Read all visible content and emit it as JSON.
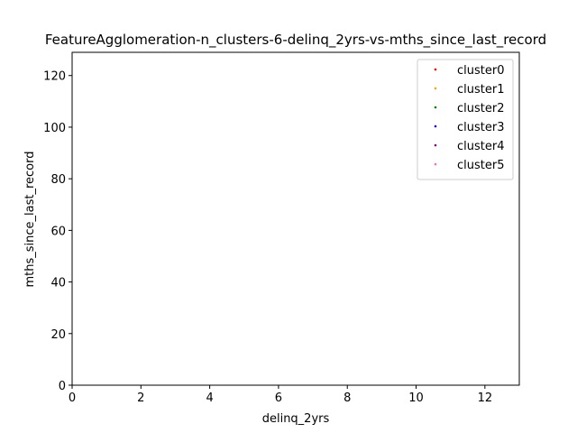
{
  "chart_data": {
    "type": "scatter",
    "title": "FeatureAgglomeration-n_clusters-6-delinq_2yrs-vs-mths_since_last_record",
    "xlabel": "delinq_2yrs",
    "ylabel": "mths_since_last_record",
    "xlim": [
      0,
      13
    ],
    "ylim": [
      0,
      129
    ],
    "xticks": [
      0,
      2,
      4,
      6,
      8,
      10,
      12
    ],
    "yticks": [
      0,
      20,
      40,
      60,
      80,
      100,
      120
    ],
    "grid": false,
    "legend_position": "top-right",
    "series": [
      {
        "name": "cluster0",
        "color": "#ff0000",
        "points": []
      },
      {
        "name": "cluster1",
        "color": "#ffa500",
        "points": []
      },
      {
        "name": "cluster2",
        "color": "#008000",
        "points": []
      },
      {
        "name": "cluster3",
        "color": "#0000ff",
        "points": []
      },
      {
        "name": "cluster4",
        "color": "#800080",
        "points": []
      },
      {
        "name": "cluster5",
        "color": "#ff69b4",
        "points": []
      }
    ]
  }
}
